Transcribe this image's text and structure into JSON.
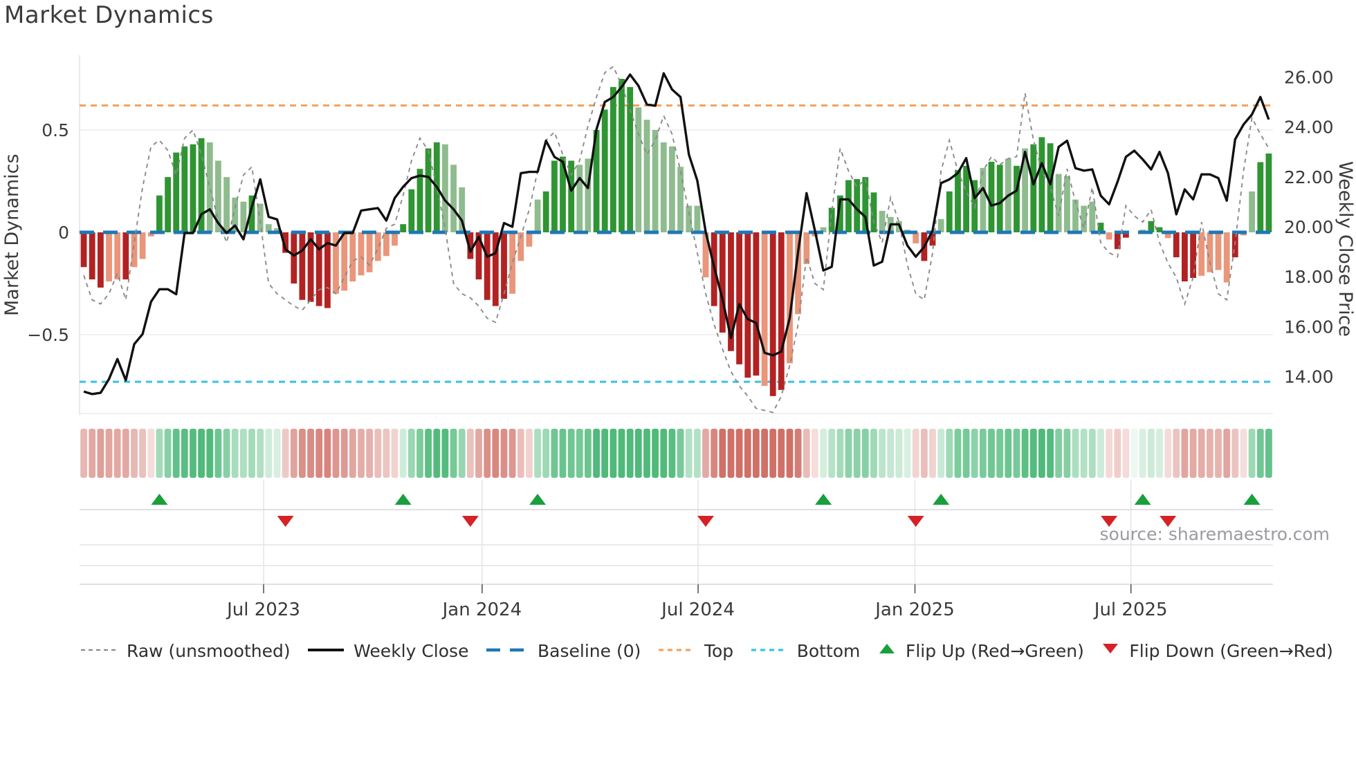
{
  "title": "Market Dynamics",
  "left_axis": {
    "label": "Market Dynamics",
    "ticks": [
      {
        "v": 0.5,
        "label": "0.5"
      },
      {
        "v": 0,
        "label": "0"
      },
      {
        "v": -0.5,
        "label": "−0.5"
      }
    ]
  },
  "right_axis": {
    "label": "Weekly Close Price",
    "ticks": [
      {
        "v": 26,
        "label": "26.00"
      },
      {
        "v": 24,
        "label": "24.00"
      },
      {
        "v": 22,
        "label": "22.00"
      },
      {
        "v": 20,
        "label": "20.00"
      },
      {
        "v": 18,
        "label": "18.00"
      },
      {
        "v": 16,
        "label": "16.00"
      },
      {
        "v": 14,
        "label": "14.00"
      }
    ]
  },
  "x_axis": {
    "ticks": [
      {
        "label": "Jul 2023",
        "week": 21.4
      },
      {
        "label": "Jan 2024",
        "week": 47.4
      },
      {
        "label": "Jul 2024",
        "week": 73.1
      },
      {
        "label": "Jan 2025",
        "week": 98.9
      },
      {
        "label": "Jul 2025",
        "week": 124.6
      }
    ]
  },
  "source": "source: sharemaestro.com",
  "legend": {
    "raw": "Raw (unsmoothed)",
    "close": "Weekly Close",
    "baseline": "Baseline (0)",
    "top": "Top",
    "bottom": "Bottom",
    "flip_up": "Flip Up (Red→Green)",
    "flip_down": "Flip Down (Green→Red)"
  },
  "colors": {
    "bar_pos_strong": "#2e9532",
    "bar_pos_light": "#8fbc8f",
    "bar_neg_strong": "#b22222",
    "bar_neg_light": "#e9967a",
    "close_line": "#111111",
    "raw_line": "#8a8a8a",
    "baseline": "#1f77b4",
    "top_line": "#f5a15d",
    "bottom_line": "#35c3e8",
    "flip_up": "#18a03c",
    "flip_down": "#d62127",
    "heat_pos_base": [
      79,
      186,
      122
    ],
    "heat_neg_base": [
      208,
      112,
      103
    ],
    "grid": "#ececf2",
    "band_grid": "#d6d6dd",
    "band_grid_light": "#e3e3e9",
    "text": "#3a3a3a"
  },
  "chart_data": {
    "type": "combo-bar-line",
    "x_unit": "week",
    "n_weeks": 142,
    "baseline": 0,
    "top": 0.62,
    "bottom": -0.73,
    "left_ylim": [
      -0.9,
      0.87
    ],
    "right_ylim": [
      12.4,
      26.9
    ],
    "oscillator": [
      -0.17,
      -0.23,
      -0.27,
      -0.24,
      -0.23,
      -0.23,
      -0.17,
      -0.13,
      -0.02,
      0.18,
      0.27,
      0.39,
      0.42,
      0.43,
      0.46,
      0.44,
      0.35,
      0.27,
      0.17,
      0.15,
      0.18,
      0.14,
      0.04,
      0.02,
      -0.1,
      -0.25,
      -0.33,
      -0.34,
      -0.36,
      -0.37,
      -0.3,
      -0.285,
      -0.24,
      -0.21,
      -0.195,
      -0.14,
      -0.116,
      -0.065,
      0.04,
      0.21,
      0.31,
      0.41,
      0.44,
      0.43,
      0.33,
      0.22,
      -0.13,
      -0.23,
      -0.33,
      -0.36,
      -0.325,
      -0.3,
      -0.14,
      -0.07,
      0.16,
      0.2,
      0.35,
      0.37,
      0.35,
      0.33,
      0.36,
      0.5,
      0.6,
      0.71,
      0.75,
      0.71,
      0.61,
      0.55,
      0.5,
      0.44,
      0.42,
      0.32,
      0.13,
      0.13,
      -0.22,
      -0.36,
      -0.49,
      -0.58,
      -0.645,
      -0.71,
      -0.7,
      -0.75,
      -0.8,
      -0.77,
      -0.64,
      -0.4,
      -0.155,
      -0.02,
      0.025,
      0.12,
      0.18,
      0.255,
      0.26,
      0.27,
      0.195,
      0.105,
      0.075,
      0.055,
      0.013,
      -0.054,
      -0.14,
      -0.065,
      0.065,
      0.2,
      0.305,
      0.325,
      0.255,
      0.315,
      0.345,
      0.33,
      0.36,
      0.325,
      0.41,
      0.43,
      0.465,
      0.435,
      0.285,
      0.275,
      0.16,
      0.13,
      0.15,
      0.047,
      -0.035,
      -0.082,
      -0.026,
      0,
      0.013,
      0.055,
      0.025,
      -0.028,
      -0.122,
      -0.24,
      -0.223,
      -0.212,
      -0.195,
      -0.184,
      -0.245,
      -0.122,
      -0.015,
      0.2,
      0.343,
      0.385
    ],
    "shade": "dddlldlllddddddllllldlllddddddlllllllldddddllldddddlllldddd lldddddlllll llll dddddd lddllllldd ddddllllld dlddddlddl dldddlllll dlddllddld ddlllldlld dd",
    "weekly_close": [
      13.4,
      13.3,
      13.35,
      13.9,
      14.7,
      13.85,
      15.3,
      15.7,
      17.0,
      17.5,
      17.5,
      17.3,
      19.75,
      19.75,
      20.5,
      20.7,
      20.15,
      19.75,
      20.05,
      19.5,
      20.8,
      21.9,
      20.4,
      20.3,
      19.1,
      18.85,
      19.05,
      19.5,
      19.1,
      19.35,
      19.25,
      19.75,
      19.75,
      20.65,
      20.7,
      20.75,
      20.25,
      21.15,
      21.6,
      21.95,
      22.05,
      22.0,
      21.6,
      21.05,
      20.7,
      20.25,
      19.0,
      19.6,
      18.8,
      18.95,
      20.15,
      20.0,
      22.15,
      22.2,
      22.2,
      23.45,
      22.8,
      22.6,
      21.45,
      21.95,
      21.55,
      23.9,
      25.0,
      25.2,
      25.6,
      26.1,
      25.65,
      24.9,
      24.85,
      26.15,
      25.5,
      25.2,
      22.9,
      21.85,
      19.8,
      18.4,
      17.1,
      15.55,
      16.9,
      16.3,
      16.15,
      14.95,
      14.85,
      15.0,
      16.35,
      19.0,
      21.35,
      19.85,
      18.25,
      18.4,
      21.1,
      21.1,
      20.7,
      20.4,
      18.45,
      18.6,
      20.1,
      20.1,
      19.25,
      18.8,
      19.2,
      19.85,
      21.75,
      21.9,
      22.15,
      22.75,
      21.15,
      21.55,
      20.85,
      20.95,
      21.25,
      21.45,
      23.0,
      21.7,
      22.55,
      21.7,
      23.2,
      23.45,
      22.35,
      22.25,
      22.3,
      21.25,
      20.9,
      21.8,
      22.8,
      23.05,
      22.7,
      22.3,
      23.0,
      22.15,
      20.5,
      21.5,
      21.1,
      22.1,
      22.1,
      21.95,
      21.05,
      23.5,
      24.1,
      24.5,
      25.2,
      24.3
    ],
    "raw": [
      -0.21,
      -0.33,
      -0.35,
      -0.3,
      -0.2,
      -0.33,
      -0.05,
      0.22,
      0.42,
      0.45,
      0.4,
      0.28,
      0.46,
      0.5,
      0.38,
      0.22,
      0.06,
      -0.05,
      0.12,
      0.28,
      0.32,
      0.05,
      -0.25,
      -0.3,
      -0.33,
      -0.36,
      -0.38,
      -0.33,
      -0.28,
      -0.27,
      -0.3,
      -0.22,
      -0.14,
      -0.12,
      -0.16,
      -0.08,
      0.02,
      0.04,
      0.18,
      0.35,
      0.46,
      0.4,
      0.22,
      0.02,
      -0.25,
      -0.3,
      -0.32,
      -0.36,
      -0.42,
      -0.44,
      -0.3,
      -0.15,
      -0.02,
      0.11,
      0.3,
      0.45,
      0.49,
      0.38,
      0.28,
      0.35,
      0.52,
      0.66,
      0.78,
      0.81,
      0.72,
      0.6,
      0.48,
      0.38,
      0.45,
      0.57,
      0.48,
      0.3,
      0.1,
      -0.1,
      -0.3,
      -0.45,
      -0.57,
      -0.68,
      -0.75,
      -0.8,
      -0.86,
      -0.87,
      -0.88,
      -0.8,
      -0.65,
      -0.45,
      -0.12,
      -0.25,
      -0.28,
      0.1,
      0.41,
      0.3,
      0.22,
      0.26,
      0.05,
      -0.05,
      0.17,
      0.05,
      -0.16,
      -0.3,
      -0.33,
      -0.1,
      0.3,
      0.45,
      0.3,
      0.2,
      0.12,
      0.3,
      0.37,
      0.33,
      0.36,
      0.37,
      0.68,
      0.45,
      0.3,
      0.22,
      0.08,
      0.31,
      0.15,
      0.02,
      0.22,
      -0.05,
      -0.1,
      -0.12,
      0.13,
      0.08,
      0.05,
      0.11,
      -0.05,
      -0.15,
      -0.22,
      -0.35,
      -0.22,
      0.05,
      -0.15,
      -0.3,
      -0.33,
      -0.05,
      0.3,
      0.56,
      0.48,
      0.41
    ],
    "flip_up_weeks": [
      9,
      38,
      54,
      88,
      102,
      126,
      139
    ],
    "flip_down_weeks": [
      24,
      46,
      74,
      99,
      122,
      129
    ]
  }
}
